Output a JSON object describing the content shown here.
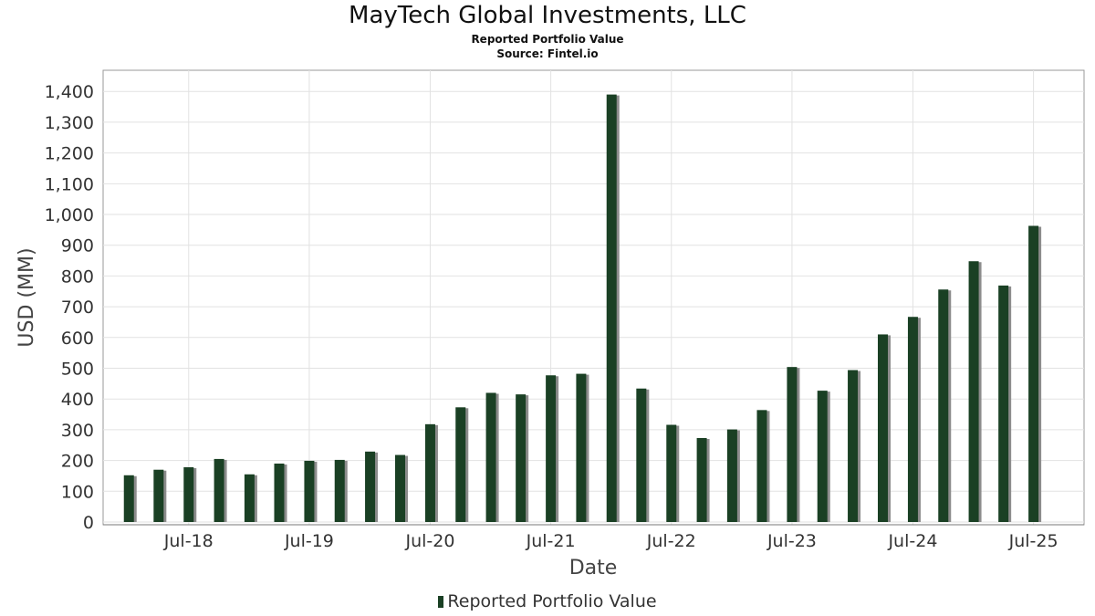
{
  "chart_data": {
    "type": "bar",
    "title": "MayTech Global Investments, LLC",
    "subtitle": "Reported Portfolio Value",
    "source": "Source: Fintel.io",
    "xlabel": "Date",
    "ylabel": "USD (MM)",
    "ylim": [
      0,
      1460
    ],
    "yticks": [
      0,
      100,
      200,
      300,
      400,
      500,
      600,
      700,
      800,
      900,
      1000,
      1100,
      1200,
      1300,
      1400
    ],
    "ytick_labels": [
      "0",
      "100",
      "200",
      "300",
      "400",
      "500",
      "600",
      "700",
      "800",
      "900",
      "1,000",
      "1,100",
      "1,200",
      "1,300",
      "1,400"
    ],
    "xlim": [
      "2017-10-15",
      "2025-12-01"
    ],
    "xticks": [
      {
        "label": "Jul-18",
        "date": "2018-07-01"
      },
      {
        "label": "Jul-19",
        "date": "2019-07-01"
      },
      {
        "label": "Jul-20",
        "date": "2020-07-01"
      },
      {
        "label": "Jul-21",
        "date": "2021-07-01"
      },
      {
        "label": "Jul-22",
        "date": "2022-07-01"
      },
      {
        "label": "Jul-23",
        "date": "2023-07-01"
      },
      {
        "label": "Jul-24",
        "date": "2024-07-01"
      },
      {
        "label": "Jul-25",
        "date": "2025-07-01"
      }
    ],
    "grid": true,
    "legend_position": "bottom-center",
    "colors": {
      "bar": "#1a4024",
      "bar_shadow": "#8c8c8c",
      "grid": "#e2e2e2",
      "frame": "#999999"
    },
    "series": [
      {
        "name": "Reported Portfolio Value",
        "points": [
          {
            "date": "2018-01-01",
            "value": 152
          },
          {
            "date": "2018-04-01",
            "value": 170
          },
          {
            "date": "2018-07-01",
            "value": 178
          },
          {
            "date": "2018-10-01",
            "value": 205
          },
          {
            "date": "2019-01-01",
            "value": 155
          },
          {
            "date": "2019-04-01",
            "value": 190
          },
          {
            "date": "2019-07-01",
            "value": 199
          },
          {
            "date": "2019-10-01",
            "value": 202
          },
          {
            "date": "2020-01-01",
            "value": 229
          },
          {
            "date": "2020-04-01",
            "value": 218
          },
          {
            "date": "2020-07-01",
            "value": 318
          },
          {
            "date": "2020-10-01",
            "value": 373
          },
          {
            "date": "2021-01-01",
            "value": 420
          },
          {
            "date": "2021-04-01",
            "value": 415
          },
          {
            "date": "2021-07-01",
            "value": 477
          },
          {
            "date": "2021-10-01",
            "value": 482
          },
          {
            "date": "2022-01-01",
            "value": 1390
          },
          {
            "date": "2022-04-01",
            "value": 434
          },
          {
            "date": "2022-07-01",
            "value": 316
          },
          {
            "date": "2022-10-01",
            "value": 273
          },
          {
            "date": "2023-01-01",
            "value": 301
          },
          {
            "date": "2023-04-01",
            "value": 364
          },
          {
            "date": "2023-07-01",
            "value": 504
          },
          {
            "date": "2023-10-01",
            "value": 427
          },
          {
            "date": "2024-01-01",
            "value": 494
          },
          {
            "date": "2024-04-01",
            "value": 610
          },
          {
            "date": "2024-07-01",
            "value": 667
          },
          {
            "date": "2024-10-01",
            "value": 756
          },
          {
            "date": "2025-01-01",
            "value": 848
          },
          {
            "date": "2025-04-01",
            "value": 769
          },
          {
            "date": "2025-07-01",
            "value": 963
          }
        ]
      }
    ]
  }
}
